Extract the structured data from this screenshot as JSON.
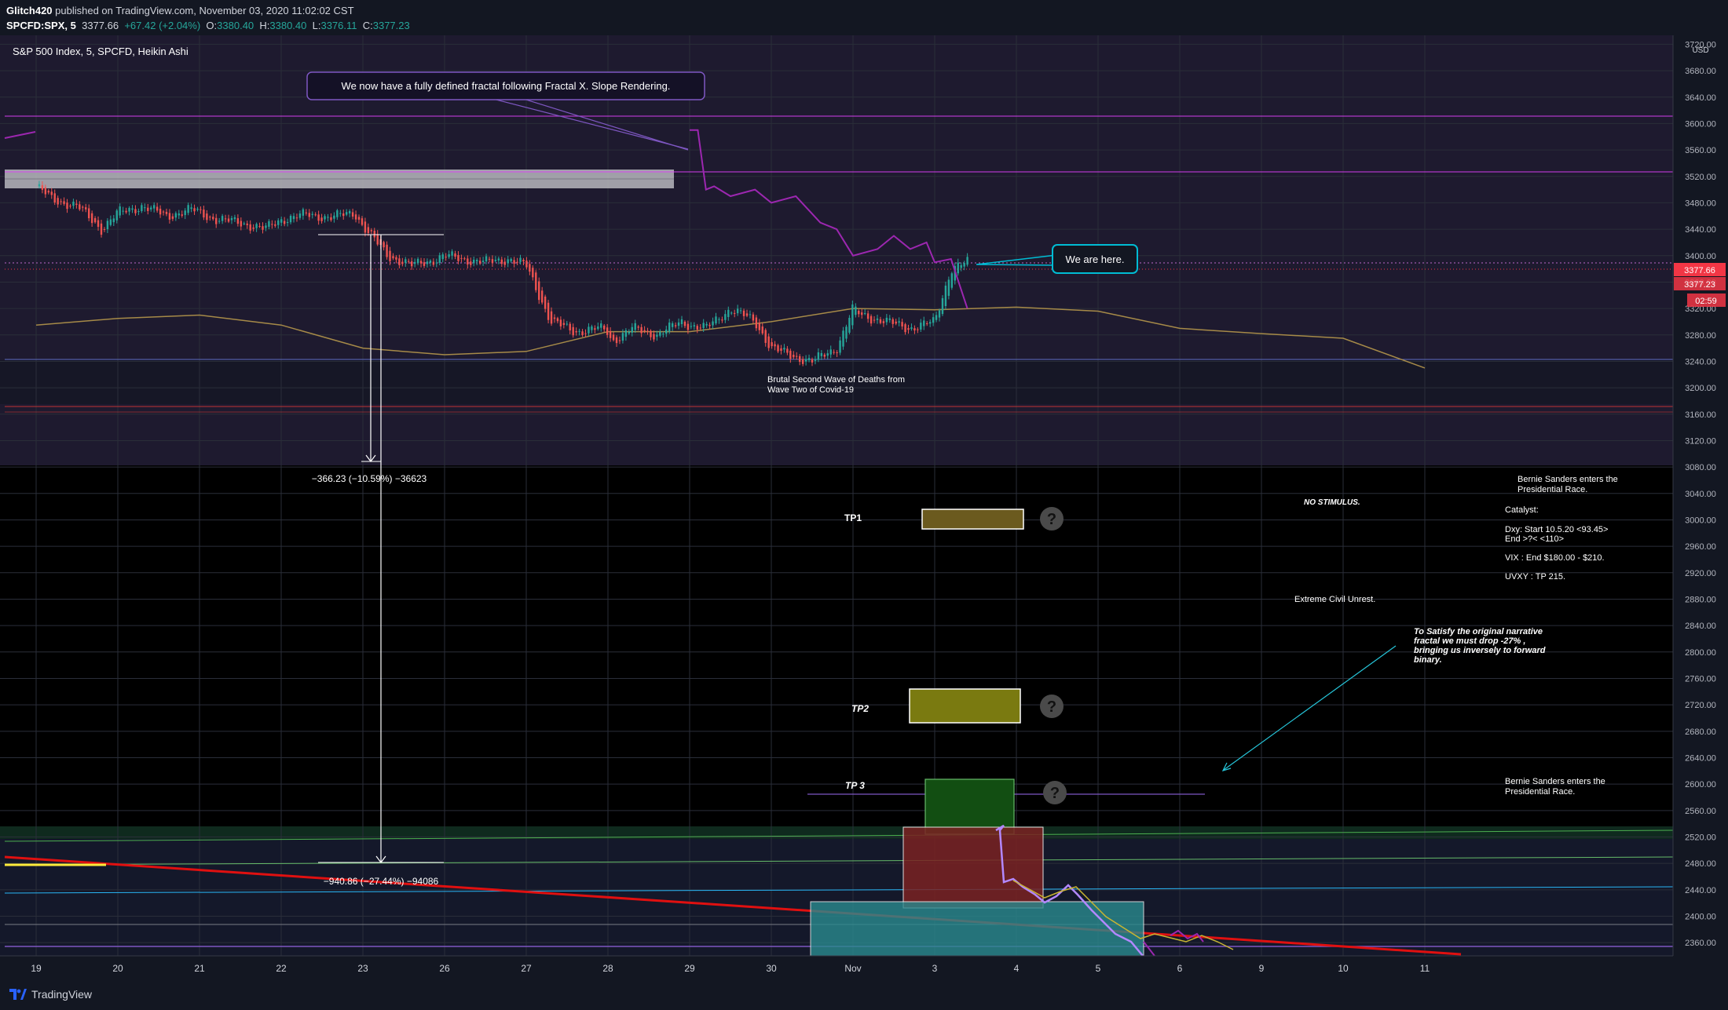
{
  "header": {
    "author": "Glitch420",
    "published_text": "published on TradingView.com, November 03, 2020 11:02:02 CST",
    "symbol": "SPCFD:SPX, 5",
    "price": "3377.66",
    "change": "+67.42 (+2.04%)",
    "o_label": "O:",
    "o_value": "3380.40",
    "h_label": "H:",
    "h_value": "3380.40",
    "l_label": "L:",
    "l_value": "3376.11",
    "c_label": "C:",
    "c_value": "3377.23",
    "legend": "S&P 500 Index, 5, SPCFD, Heikin Ashi"
  },
  "price_axis": {
    "currency": "USD",
    "ticks": [
      "3720.00",
      "3680.00",
      "3640.00",
      "3600.00",
      "3560.00",
      "3520.00",
      "3480.00",
      "3440.00",
      "3400.00",
      "3360.00",
      "3320.00",
      "3280.00",
      "3240.00",
      "3200.00",
      "3160.00",
      "3120.00",
      "3080.00",
      "3040.00",
      "3000.00",
      "2960.00",
      "2920.00",
      "2880.00",
      "2840.00",
      "2800.00",
      "2760.00",
      "2720.00",
      "2680.00",
      "2640.00",
      "2600.00",
      "2560.00",
      "2520.00",
      "2480.00",
      "2440.00",
      "2400.00",
      "2360.00"
    ],
    "last_price_tag": "3377.66",
    "close_tag": "3377.23",
    "countdown_tag": "02:59"
  },
  "time_axis": {
    "labels": [
      "19",
      "20",
      "21",
      "22",
      "23",
      "26",
      "27",
      "28",
      "29",
      "30",
      "Nov",
      "3",
      "4",
      "5",
      "6",
      "9",
      "10",
      "11"
    ]
  },
  "annotations": {
    "fractal_note": "We now have a fully defined fractal following Fractal X. Slope Rendering.",
    "we_are_here": "We are here.",
    "second_wave": "Brutal Second Wave of Deaths from Wave Two of Covid-19",
    "measure1": "−366.23 (−10.59%) −36623",
    "measure2": "−940.86 (−27.44%) −94086",
    "tp1": "TP1",
    "tp2": "TP2",
    "tp3": "TP 3",
    "question": "?",
    "no_stimulus": "NO STIMULUS.",
    "civil_unrest": "Extreme Civil Unrest.",
    "bernie1": "Bernie Sanders enters the Presidential Race.",
    "bernie2": "Bernie Sanders enters the Presidential Race.",
    "catalyst": "Catalyst:",
    "dxy": "Dxy: Start 10.5.20 <93.45> End >?< <110>",
    "vix": "VIX : End $180.00 - $210.",
    "uvxy": "UVXY : TP 215.",
    "narrative": "To Satisfy the original narrative fractal we must drop -27% , bringing us inversely to forward binary."
  },
  "footer": {
    "brand": "TradingView"
  },
  "colors": {
    "background": "#131722",
    "candle_up": "#26a69a",
    "candle_down": "#ef5350",
    "projection": "#9c27b0",
    "moving_average": "#a68a48",
    "last_price": "#f23645",
    "callout_border": "#00bcd4"
  },
  "chart_data": {
    "type": "line",
    "title": "S&P 500 Index, 5, SPCFD, Heikin Ashi",
    "xlabel": "",
    "ylabel": "",
    "categories": [
      "19",
      "20",
      "21",
      "22",
      "23",
      "26",
      "27",
      "28",
      "29",
      "30",
      "Nov",
      "3",
      "4",
      "5",
      "6",
      "9",
      "10",
      "11"
    ],
    "ylim": [
      2340,
      3730
    ],
    "series": [
      {
        "name": "",
        "role": "price (Heikin Ashi, approximate)",
        "x": [
          0,
          0.2,
          0.5,
          0.8,
          1,
          1.3,
          1.6,
          1.9,
          2.2,
          2.5,
          2.8,
          3,
          3.3,
          3.6,
          3.9,
          4,
          4.3,
          4.6,
          4.9,
          5,
          5.2,
          5.5,
          5.8,
          6,
          6.3,
          6.6,
          6.9,
          7,
          7.05,
          7.3,
          7.6,
          7.9,
          8,
          8.2,
          8.5,
          8.8,
          9,
          9.2,
          9.5,
          9.8,
          10,
          10.1,
          10.4,
          10.7,
          11,
          11.2,
          11.4
        ],
        "values": [
          3505,
          3485,
          3475,
          3440,
          3465,
          3475,
          3460,
          3470,
          3455,
          3450,
          3440,
          3455,
          3462,
          3458,
          3465,
          3445,
          3400,
          3385,
          3395,
          3400,
          3395,
          3390,
          3395,
          3385,
          3300,
          3285,
          3290,
          3285,
          3270,
          3290,
          3280,
          3300,
          3295,
          3290,
          3320,
          3300,
          3260,
          3250,
          3240,
          3260,
          3320,
          3310,
          3300,
          3290,
          3300,
          3380,
          3390
        ]
      },
      {
        "name": "",
        "role": "fractal projection",
        "x": [
          8,
          8.1,
          8.2,
          8.3,
          8.5,
          8.8,
          9,
          9.3,
          9.6,
          9.8,
          10,
          10.3,
          10.5,
          10.7,
          10.9,
          11,
          11.2,
          11.4
        ],
        "values": [
          3590,
          3590,
          3500,
          3505,
          3490,
          3500,
          3480,
          3490,
          3450,
          3440,
          3400,
          3410,
          3430,
          3410,
          3420,
          3390,
          3395,
          3320
        ]
      },
      {
        "name": "",
        "role": "moving average",
        "x": [
          0,
          1,
          2,
          3,
          4,
          5,
          6,
          7,
          8,
          9,
          10,
          11,
          12,
          13,
          14,
          15,
          16,
          17
        ],
        "values": [
          3295,
          3305,
          3310,
          3295,
          3260,
          3250,
          3255,
          3285,
          3285,
          3300,
          3320,
          3318,
          3322,
          3316,
          3290,
          3282,
          3275,
          3230
        ]
      }
    ],
    "zones": [
      {
        "label": "TP1",
        "low": 3000,
        "high": 3025
      },
      {
        "label": "TP2",
        "low": 2710,
        "high": 2745
      },
      {
        "label": "TP 3",
        "low": 2540,
        "high": 2610
      }
    ],
    "measures": [
      {
        "label": "−366.23 (−10.59%) −36623",
        "from": 3460,
        "to": 3095
      },
      {
        "label": "−940.86 (−27.44%) −94086",
        "from": 3460,
        "to": 2520
      }
    ]
  }
}
